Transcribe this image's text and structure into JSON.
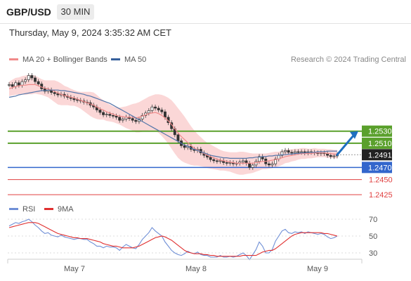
{
  "header": {
    "symbol": "GBP/USD",
    "timeframe": "30 MIN",
    "timestamp": "Thursday, May 9, 2024 3:35:32 AM CET"
  },
  "legend": {
    "ma20_label": "MA 20 + Bollinger Bands",
    "ma50_label": "MA 50",
    "credit": "Research © 2024 Trading Central",
    "rsi_label": "RSI",
    "ma9_label": "9MA"
  },
  "colors": {
    "ma20": "#f08a8a",
    "bollinger_fill": "#fbd3d3",
    "ma50": "#5577aa",
    "resistance": "#5aa02c",
    "support": "#3366cc",
    "target": "#e04040",
    "current": "#222222",
    "arrow": "#1f6fc0",
    "rsi": "#6f8fd6",
    "rsi_ma": "#e03030"
  },
  "chart_data": [
    {
      "type": "candlestick",
      "title": "GBP/USD",
      "x_labels": [
        "May 7",
        "May 8",
        "May 9"
      ],
      "ylim": [
        1.241,
        1.264
      ],
      "current_price": "1.2491",
      "levels": [
        {
          "label": "1.2530",
          "value": 1.253,
          "kind": "resistance"
        },
        {
          "label": "1.2510",
          "value": 1.251,
          "kind": "resistance"
        },
        {
          "label": "1.2491",
          "value": 1.2491,
          "kind": "current"
        },
        {
          "label": "1.2470",
          "value": 1.247,
          "kind": "support"
        },
        {
          "label": "1.2450",
          "value": 1.245,
          "kind": "target"
        },
        {
          "label": "1.2425",
          "value": 1.2425,
          "kind": "target"
        }
      ],
      "close": [
        1.2607,
        1.2604,
        1.261,
        1.2606,
        1.2612,
        1.2615,
        1.2622,
        1.2618,
        1.2612,
        1.2608,
        1.26,
        1.2596,
        1.2598,
        1.2594,
        1.2592,
        1.259,
        1.2591,
        1.2588,
        1.2586,
        1.2584,
        1.2582,
        1.2581,
        1.258,
        1.2578,
        1.2577,
        1.2573,
        1.257,
        1.2565,
        1.2561,
        1.2557,
        1.2558,
        1.2556,
        1.2555,
        1.2553,
        1.2548,
        1.255,
        1.2553,
        1.2551,
        1.2548,
        1.2546,
        1.255,
        1.2556,
        1.256,
        1.2564,
        1.257,
        1.2568,
        1.2565,
        1.2562,
        1.2553,
        1.2544,
        1.2534,
        1.2524,
        1.2514,
        1.2506,
        1.2503,
        1.2505,
        1.25,
        1.2498,
        1.25,
        1.2494,
        1.249,
        1.2487,
        1.2483,
        1.2481,
        1.248,
        1.2481,
        1.2478,
        1.2477,
        1.2478,
        1.2476,
        1.2477,
        1.2479,
        1.2481,
        1.2477,
        1.247,
        1.2474,
        1.248,
        1.2488,
        1.2484,
        1.2476,
        1.2474,
        1.2476,
        1.2484,
        1.249,
        1.2496,
        1.2498,
        1.2495,
        1.2494,
        1.2496,
        1.2495,
        1.2496,
        1.2494,
        1.2496,
        1.2495,
        1.2494,
        1.2493,
        1.2494,
        1.2493,
        1.249,
        1.2488,
        1.2489,
        1.2491
      ],
      "ma20": [
        1.26,
        1.2602,
        1.2604,
        1.2605,
        1.2606,
        1.2606,
        1.2607,
        1.2607,
        1.2607,
        1.2605,
        1.2603,
        1.2601,
        1.26,
        1.2598,
        1.2596,
        1.2593,
        1.2591,
        1.2589,
        1.2588,
        1.2586,
        1.2585,
        1.2583,
        1.2581,
        1.2579,
        1.2577,
        1.2575,
        1.2573,
        1.257,
        1.2567,
        1.2565,
        1.2562,
        1.256,
        1.2558,
        1.2556,
        1.2555,
        1.2554,
        1.2553,
        1.2553,
        1.2553,
        1.2552,
        1.2553,
        1.2555,
        1.2557,
        1.2559,
        1.256,
        1.2561,
        1.2559,
        1.2556,
        1.2552,
        1.2547,
        1.2541,
        1.2534,
        1.2527,
        1.2521,
        1.2516,
        1.2511,
        1.2506,
        1.2502,
        1.2499,
        1.2496,
        1.2493,
        1.249,
        1.2488,
        1.2486,
        1.2484,
        1.2482,
        1.2481,
        1.248,
        1.2479,
        1.2478,
        1.2477,
        1.2477,
        1.2477,
        1.2477,
        1.2477,
        1.2477,
        1.2478,
        1.2479,
        1.248,
        1.248,
        1.2481,
        1.2482,
        1.2483,
        1.2484,
        1.2486,
        1.2488,
        1.2489,
        1.249,
        1.2491,
        1.2492,
        1.2493,
        1.2493,
        1.2493,
        1.2493,
        1.2494,
        1.2494,
        1.2494,
        1.2494,
        1.2493,
        1.2493,
        1.2492,
        1.2492
      ],
      "ma50": [
        1.2586,
        1.2587,
        1.2588,
        1.259,
        1.2591,
        1.2592,
        1.2593,
        1.2594,
        1.2595,
        1.2596,
        1.2597,
        1.2597,
        1.2598,
        1.2598,
        1.2598,
        1.2598,
        1.2597,
        1.2597,
        1.2596,
        1.2595,
        1.2594,
        1.2593,
        1.2592,
        1.2591,
        1.2589,
        1.2588,
        1.2586,
        1.2584,
        1.2582,
        1.258,
        1.2578,
        1.2576,
        1.2573,
        1.257,
        1.2567,
        1.2564,
        1.2561,
        1.2558,
        1.2555,
        1.2552,
        1.2549,
        1.2546,
        1.2543,
        1.254,
        1.2537,
        1.2534,
        1.2531,
        1.2528,
        1.2525,
        1.2522,
        1.2519,
        1.2516,
        1.2513,
        1.251,
        1.2507,
        1.2505,
        1.2502,
        1.25,
        1.2498,
        1.2496,
        1.2494,
        1.2492,
        1.249,
        1.2489,
        1.2488,
        1.2487,
        1.2486,
        1.2486,
        1.2485,
        1.2485,
        1.2485,
        1.2485,
        1.2485,
        1.2485,
        1.2486,
        1.2486,
        1.2487,
        1.2487,
        1.2488,
        1.2488,
        1.2489,
        1.2489,
        1.249,
        1.249,
        1.2491,
        1.2491,
        1.2492,
        1.2492,
        1.2493,
        1.2493,
        1.2494,
        1.2494,
        1.2495,
        1.2495,
        1.2495,
        1.2496,
        1.2496,
        1.2496,
        1.2497,
        1.2497,
        1.2497,
        1.2497
      ],
      "bollinger_width": [
        0.0012,
        0.0013,
        0.0014,
        0.0014,
        0.0015,
        0.0016,
        0.0016,
        0.0016,
        0.0015,
        0.0014,
        0.0013,
        0.0013,
        0.0014,
        0.0016,
        0.0018,
        0.0019,
        0.0018,
        0.0016,
        0.0015,
        0.0014,
        0.0013,
        0.0013,
        0.0014,
        0.0016,
        0.0018,
        0.002,
        0.0021,
        0.002,
        0.0018,
        0.0016,
        0.0015,
        0.0014,
        0.0013,
        0.0013,
        0.0014,
        0.0016,
        0.0018,
        0.002,
        0.0022,
        0.0024,
        0.0025,
        0.0026,
        0.0027,
        0.0028,
        0.0029,
        0.003,
        0.0032,
        0.0034,
        0.0036,
        0.0038,
        0.004,
        0.0041,
        0.0041,
        0.004,
        0.0038,
        0.0035,
        0.0032,
        0.0029,
        0.0026,
        0.0024,
        0.0022,
        0.0021,
        0.002,
        0.0019,
        0.0018,
        0.0017,
        0.0016,
        0.0016,
        0.0016,
        0.0017,
        0.0018,
        0.0019,
        0.0019,
        0.0018,
        0.0017,
        0.0016,
        0.0015,
        0.0014,
        0.0013,
        0.0013,
        0.0013,
        0.0013,
        0.0013,
        0.0012,
        0.0012,
        0.0011,
        0.0011,
        0.001,
        0.001,
        0.0009,
        0.0009,
        0.0009,
        0.0008,
        0.0008,
        0.0008,
        0.0007,
        0.0007,
        0.0007,
        0.0007,
        0.0007,
        0.0007,
        0.0007
      ]
    },
    {
      "type": "line",
      "title": "RSI",
      "ylim": [
        20,
        80
      ],
      "y_ticks": [
        "70",
        "50",
        "30"
      ],
      "series": [
        {
          "name": "RSI",
          "values": [
            62,
            64,
            66,
            65,
            67,
            68,
            70,
            67,
            63,
            60,
            56,
            53,
            54,
            51,
            50,
            49,
            51,
            49,
            48,
            47,
            46,
            47,
            47,
            46,
            46,
            43,
            41,
            38,
            38,
            36,
            38,
            37,
            37,
            36,
            33,
            37,
            40,
            38,
            36,
            35,
            40,
            46,
            50,
            54,
            60,
            56,
            53,
            50,
            43,
            38,
            33,
            30,
            28,
            27,
            29,
            32,
            30,
            29,
            31,
            28,
            27,
            27,
            25,
            25,
            25,
            27,
            25,
            25,
            26,
            25,
            26,
            28,
            30,
            27,
            22,
            28,
            34,
            43,
            38,
            30,
            30,
            34,
            44,
            50,
            56,
            58,
            54,
            53,
            55,
            54,
            55,
            53,
            55,
            54,
            53,
            52,
            53,
            52,
            49,
            47,
            48,
            50
          ]
        },
        {
          "name": "9MA",
          "values": [
            60,
            61,
            62,
            63,
            64,
            65,
            66,
            66,
            66,
            65,
            63,
            61,
            59,
            57,
            55,
            53,
            52,
            51,
            50,
            49,
            48,
            48,
            47,
            47,
            47,
            46,
            45,
            44,
            43,
            41,
            40,
            39,
            38,
            38,
            37,
            36,
            36,
            36,
            36,
            37,
            38,
            40,
            42,
            44,
            46,
            48,
            49,
            50,
            49,
            47,
            45,
            42,
            39,
            36,
            33,
            31,
            30,
            29,
            29,
            29,
            28,
            28,
            27,
            27,
            26,
            26,
            26,
            26,
            26,
            26,
            26,
            26,
            27,
            27,
            27,
            27,
            27,
            29,
            31,
            32,
            33,
            33,
            35,
            38,
            41,
            44,
            47,
            50,
            52,
            53,
            54,
            54,
            54,
            54,
            54,
            54,
            54,
            53,
            53,
            52,
            51,
            50
          ]
        }
      ]
    }
  ]
}
